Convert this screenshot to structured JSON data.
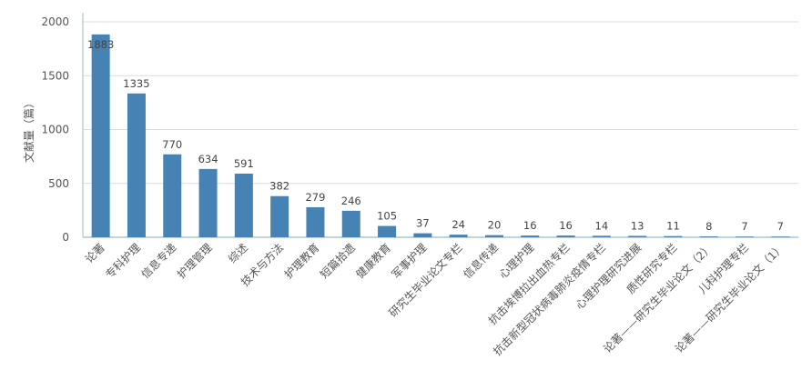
{
  "chart_data": {
    "type": "bar",
    "title": "",
    "xlabel": "",
    "ylabel": "文献量（篇）",
    "ylim": [
      0,
      2000
    ],
    "yticks": [
      0,
      500,
      1000,
      1500,
      2000
    ],
    "grid": true,
    "legend": "none",
    "bar_color": "#4682b4",
    "categories": [
      "论著",
      "专科护理",
      "信息专递",
      "护理管理",
      "综述",
      "技术与方法",
      "护理教育",
      "短篇拾遗",
      "健康教育",
      "军事护理",
      "研究生毕业论文专栏",
      "信息传递",
      "心理护理",
      "抗击埃博拉出血热专栏",
      "抗击新型冠状病毒肺炎疫情专栏",
      "心理护理研究进展",
      "质性研究专栏",
      "论著——研究生毕业论文（2）",
      "儿科护理专栏",
      "论著——研究生毕业论文（1）"
    ],
    "values": [
      1883,
      1335,
      770,
      634,
      591,
      382,
      279,
      246,
      105,
      37,
      24,
      20,
      16,
      16,
      14,
      13,
      11,
      8,
      7,
      7
    ]
  }
}
